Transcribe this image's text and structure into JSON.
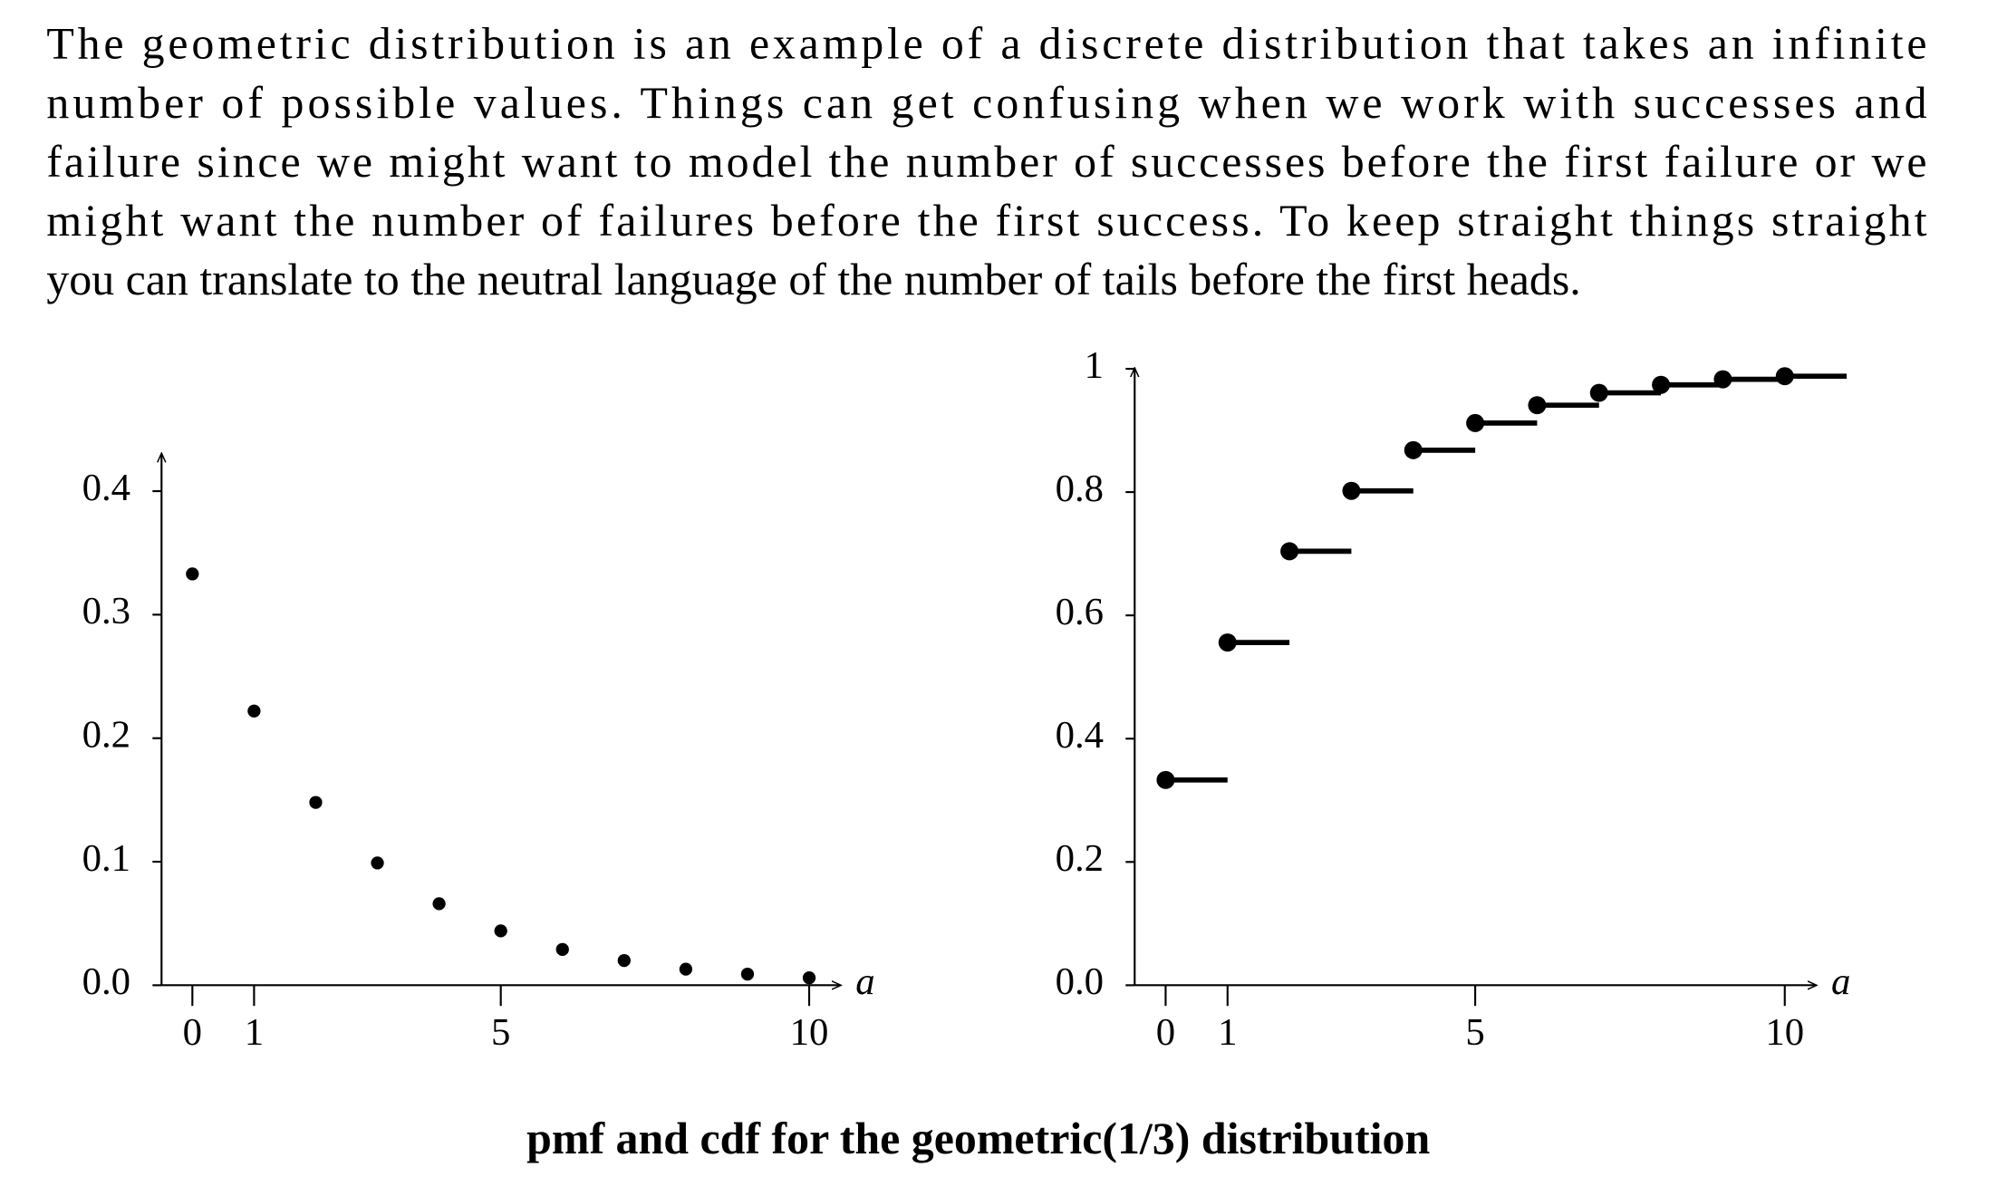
{
  "paragraph": [
    "The geometric distribution is an example of a discrete distribution that takes an infinite",
    "number of possible values.  Things can get confusing when we work with successes and",
    "failure since we might want to model the number of successes before the first failure or we",
    "might want the number of failures before the first success. To keep straight things straight",
    "you can translate to the neutral language of the number of tails before the first heads."
  ],
  "chart_data": [
    {
      "type": "scatter",
      "x": [
        0,
        1,
        2,
        3,
        4,
        5,
        6,
        7,
        8,
        9,
        10
      ],
      "values": [
        0.333,
        0.222,
        0.148,
        0.099,
        0.066,
        0.044,
        0.029,
        0.02,
        0.013,
        0.009,
        0.006
      ],
      "color": "#000000",
      "xlabel": "a",
      "xlim": [
        -0.5,
        10.5
      ],
      "xticks": [
        0,
        1,
        5,
        10
      ],
      "ylim": [
        0,
        0.43
      ],
      "yticks": [
        {
          "value": 0,
          "label": "0.0"
        },
        0.1,
        0.2,
        0.3,
        0.4
      ]
    },
    {
      "type": "step",
      "x": [
        0,
        1,
        2,
        3,
        4,
        5,
        6,
        7,
        8,
        9,
        10
      ],
      "values": [
        0.333,
        0.556,
        0.704,
        0.802,
        0.868,
        0.912,
        0.941,
        0.961,
        0.974,
        0.983,
        0.988
      ],
      "color": "#000000",
      "xlabel": "a",
      "xlim": [
        -0.5,
        10.5
      ],
      "xticks": [
        0,
        1,
        5,
        10
      ],
      "ylim": [
        0,
        1
      ],
      "yticks": [
        {
          "value": 0,
          "label": "0.0"
        },
        0.2,
        0.4,
        0.6,
        0.8,
        1
      ]
    }
  ],
  "caption": "pmf and cdf for the geometric(1/3) distribution"
}
